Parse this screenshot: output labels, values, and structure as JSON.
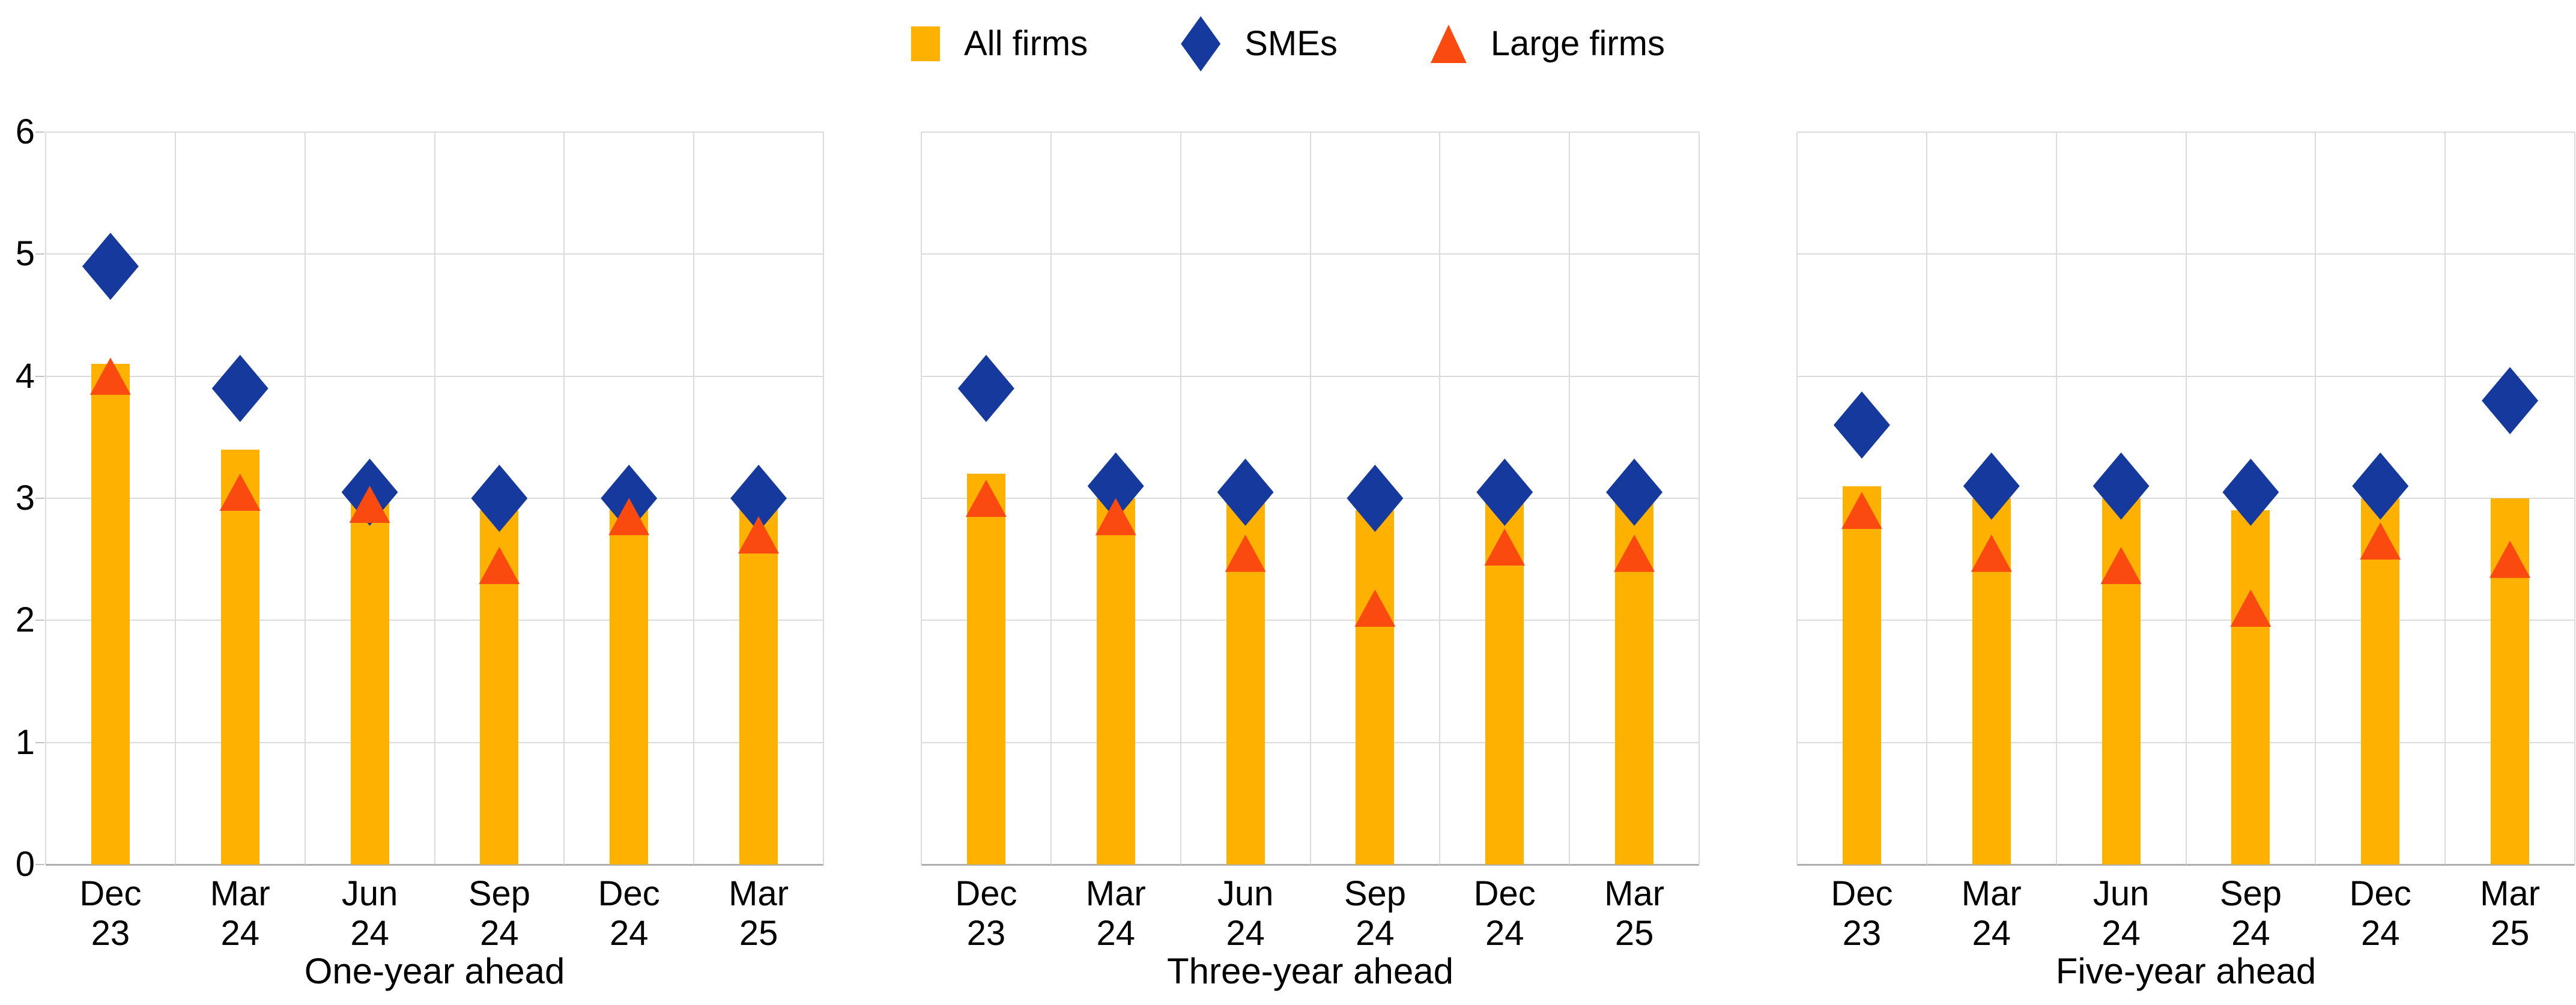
{
  "colors": {
    "all_firms": "#FFB100",
    "smes": "#15399D",
    "large_firms": "#FB4A10",
    "gridline": "#DBDBDB",
    "axis_line": "#AEAEAE",
    "text": "#000000"
  },
  "legend": {
    "items": [
      {
        "label": "All firms",
        "marker": "square-icon",
        "color": "#FFB100"
      },
      {
        "label": "SMEs",
        "marker": "diamond-icon",
        "color": "#15399D"
      },
      {
        "label": "Large firms",
        "marker": "triangle-icon",
        "color": "#FB4A10"
      }
    ]
  },
  "y_axis": {
    "min": 0,
    "max": 6,
    "tick_labels": [
      "0",
      "1",
      "2",
      "3",
      "4",
      "5",
      "6"
    ]
  },
  "chart_data": [
    {
      "type": "bar",
      "title": "One-year ahead",
      "categories": [
        "Dec 23",
        "Mar 24",
        "Jun 24",
        "Sep 24",
        "Dec 24",
        "Mar 25"
      ],
      "category_lines": [
        [
          "Dec",
          "23"
        ],
        [
          "Mar",
          "24"
        ],
        [
          "Jun",
          "24"
        ],
        [
          "Sep",
          "24"
        ],
        [
          "Dec",
          "24"
        ],
        [
          "Mar",
          "25"
        ]
      ],
      "ylim": [
        0,
        6
      ],
      "grid": true,
      "legend_position": "top-center",
      "series": [
        {
          "name": "All firms",
          "type": "bar",
          "marker": "square",
          "color": "#FFB100",
          "values": [
            4.1,
            3.4,
            3.0,
            2.9,
            2.95,
            2.95
          ]
        },
        {
          "name": "SMEs",
          "type": "scatter",
          "marker": "diamond",
          "color": "#15399D",
          "values": [
            4.9,
            3.9,
            3.05,
            3.0,
            3.0,
            3.0
          ]
        },
        {
          "name": "Large firms",
          "type": "scatter",
          "marker": "triangle",
          "color": "#FB4A10",
          "values": [
            4.0,
            3.05,
            2.95,
            2.45,
            2.85,
            2.7
          ]
        }
      ]
    },
    {
      "type": "bar",
      "title": "Three-year ahead",
      "categories": [
        "Dec 23",
        "Mar 24",
        "Jun 24",
        "Sep 24",
        "Dec 24",
        "Mar 25"
      ],
      "category_lines": [
        [
          "Dec",
          "23"
        ],
        [
          "Mar",
          "24"
        ],
        [
          "Jun",
          "24"
        ],
        [
          "Sep",
          "24"
        ],
        [
          "Dec",
          "24"
        ],
        [
          "Mar",
          "25"
        ]
      ],
      "ylim": [
        0,
        6
      ],
      "grid": true,
      "legend_position": "top-center",
      "series": [
        {
          "name": "All firms",
          "type": "bar",
          "marker": "square",
          "color": "#FFB100",
          "values": [
            3.2,
            3.0,
            3.0,
            2.9,
            3.0,
            3.0
          ]
        },
        {
          "name": "SMEs",
          "type": "scatter",
          "marker": "diamond",
          "color": "#15399D",
          "values": [
            3.9,
            3.1,
            3.05,
            3.0,
            3.05,
            3.05
          ]
        },
        {
          "name": "Large firms",
          "type": "scatter",
          "marker": "triangle",
          "color": "#FB4A10",
          "values": [
            3.0,
            2.85,
            2.55,
            2.1,
            2.6,
            2.55
          ]
        }
      ]
    },
    {
      "type": "bar",
      "title": "Five-year ahead",
      "categories": [
        "Dec 23",
        "Mar 24",
        "Jun 24",
        "Sep 24",
        "Dec 24",
        "Mar 25"
      ],
      "category_lines": [
        [
          "Dec",
          "23"
        ],
        [
          "Mar",
          "24"
        ],
        [
          "Jun",
          "24"
        ],
        [
          "Sep",
          "24"
        ],
        [
          "Dec",
          "24"
        ],
        [
          "Mar",
          "25"
        ]
      ],
      "ylim": [
        0,
        6
      ],
      "grid": true,
      "legend_position": "top-center",
      "series": [
        {
          "name": "All firms",
          "type": "bar",
          "marker": "square",
          "color": "#FFB100",
          "values": [
            3.1,
            3.0,
            3.0,
            2.9,
            3.0,
            3.0
          ]
        },
        {
          "name": "SMEs",
          "type": "scatter",
          "marker": "diamond",
          "color": "#15399D",
          "values": [
            3.6,
            3.1,
            3.1,
            3.05,
            3.1,
            3.8
          ]
        },
        {
          "name": "Large firms",
          "type": "scatter",
          "marker": "triangle",
          "color": "#FB4A10",
          "values": [
            2.9,
            2.55,
            2.45,
            2.1,
            2.65,
            2.5
          ]
        }
      ]
    }
  ]
}
